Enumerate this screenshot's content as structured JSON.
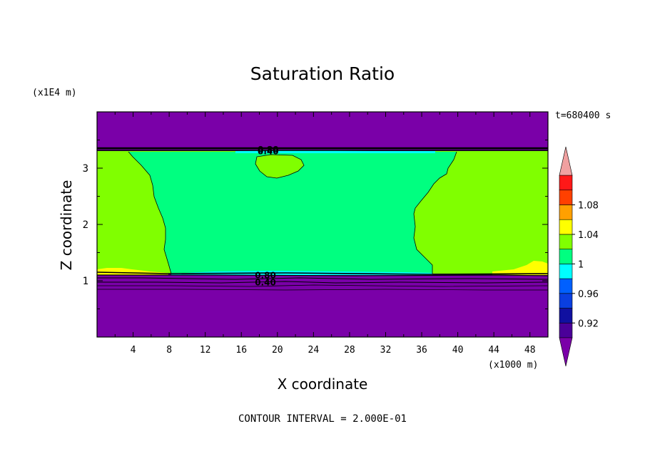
{
  "chart_data": {
    "type": "heatmap",
    "title": "Saturation Ratio",
    "xlabel": "X coordinate",
    "ylabel": "Z coordinate",
    "x_unit": "(x1000 m)",
    "y_unit": "(x1E4 m)",
    "time_label": "t=680400 s",
    "footer": "CONTOUR INTERVAL = 2.000E-01",
    "xlim": [
      0,
      50
    ],
    "ylim": [
      0,
      4
    ],
    "x_ticks": [
      4,
      8,
      12,
      16,
      20,
      24,
      28,
      32,
      36,
      40,
      44,
      48
    ],
    "y_ticks": [
      1,
      2,
      3
    ],
    "contour_labels": [
      {
        "text": "0.80",
        "x": 17.8,
        "y": 3.34
      },
      {
        "text": "0.40",
        "x": 17.8,
        "y": 3.31
      },
      {
        "text": "0.80",
        "x": 17.5,
        "y": 1.11
      },
      {
        "text": "0.40",
        "x": 17.5,
        "y": 0.98
      }
    ],
    "colorbar": {
      "levels": [
        0.92,
        0.94,
        0.96,
        0.98,
        1.0,
        1.02,
        1.04,
        1.06,
        1.08,
        1.1
      ],
      "tick_labels": [
        "0.92",
        "0.96",
        "1",
        "1.04",
        "1.08"
      ],
      "colors": [
        "#4b0099",
        "#1010a0",
        "#0a3fe0",
        "#0060ff",
        "#00ffff",
        "#00ff80",
        "#80ff00",
        "#ffff00",
        "#ffa000",
        "#ff4000",
        "#ff1818",
        "#f0a0a0"
      ],
      "under_color": "#7a00a8",
      "over_color": "#f0a0a0"
    },
    "regions": {
      "dry": "#7a00a8",
      "near_saturated": "#00ff80",
      "saturated": "#80ff00",
      "supersaturated": "#ffff00"
    }
  }
}
